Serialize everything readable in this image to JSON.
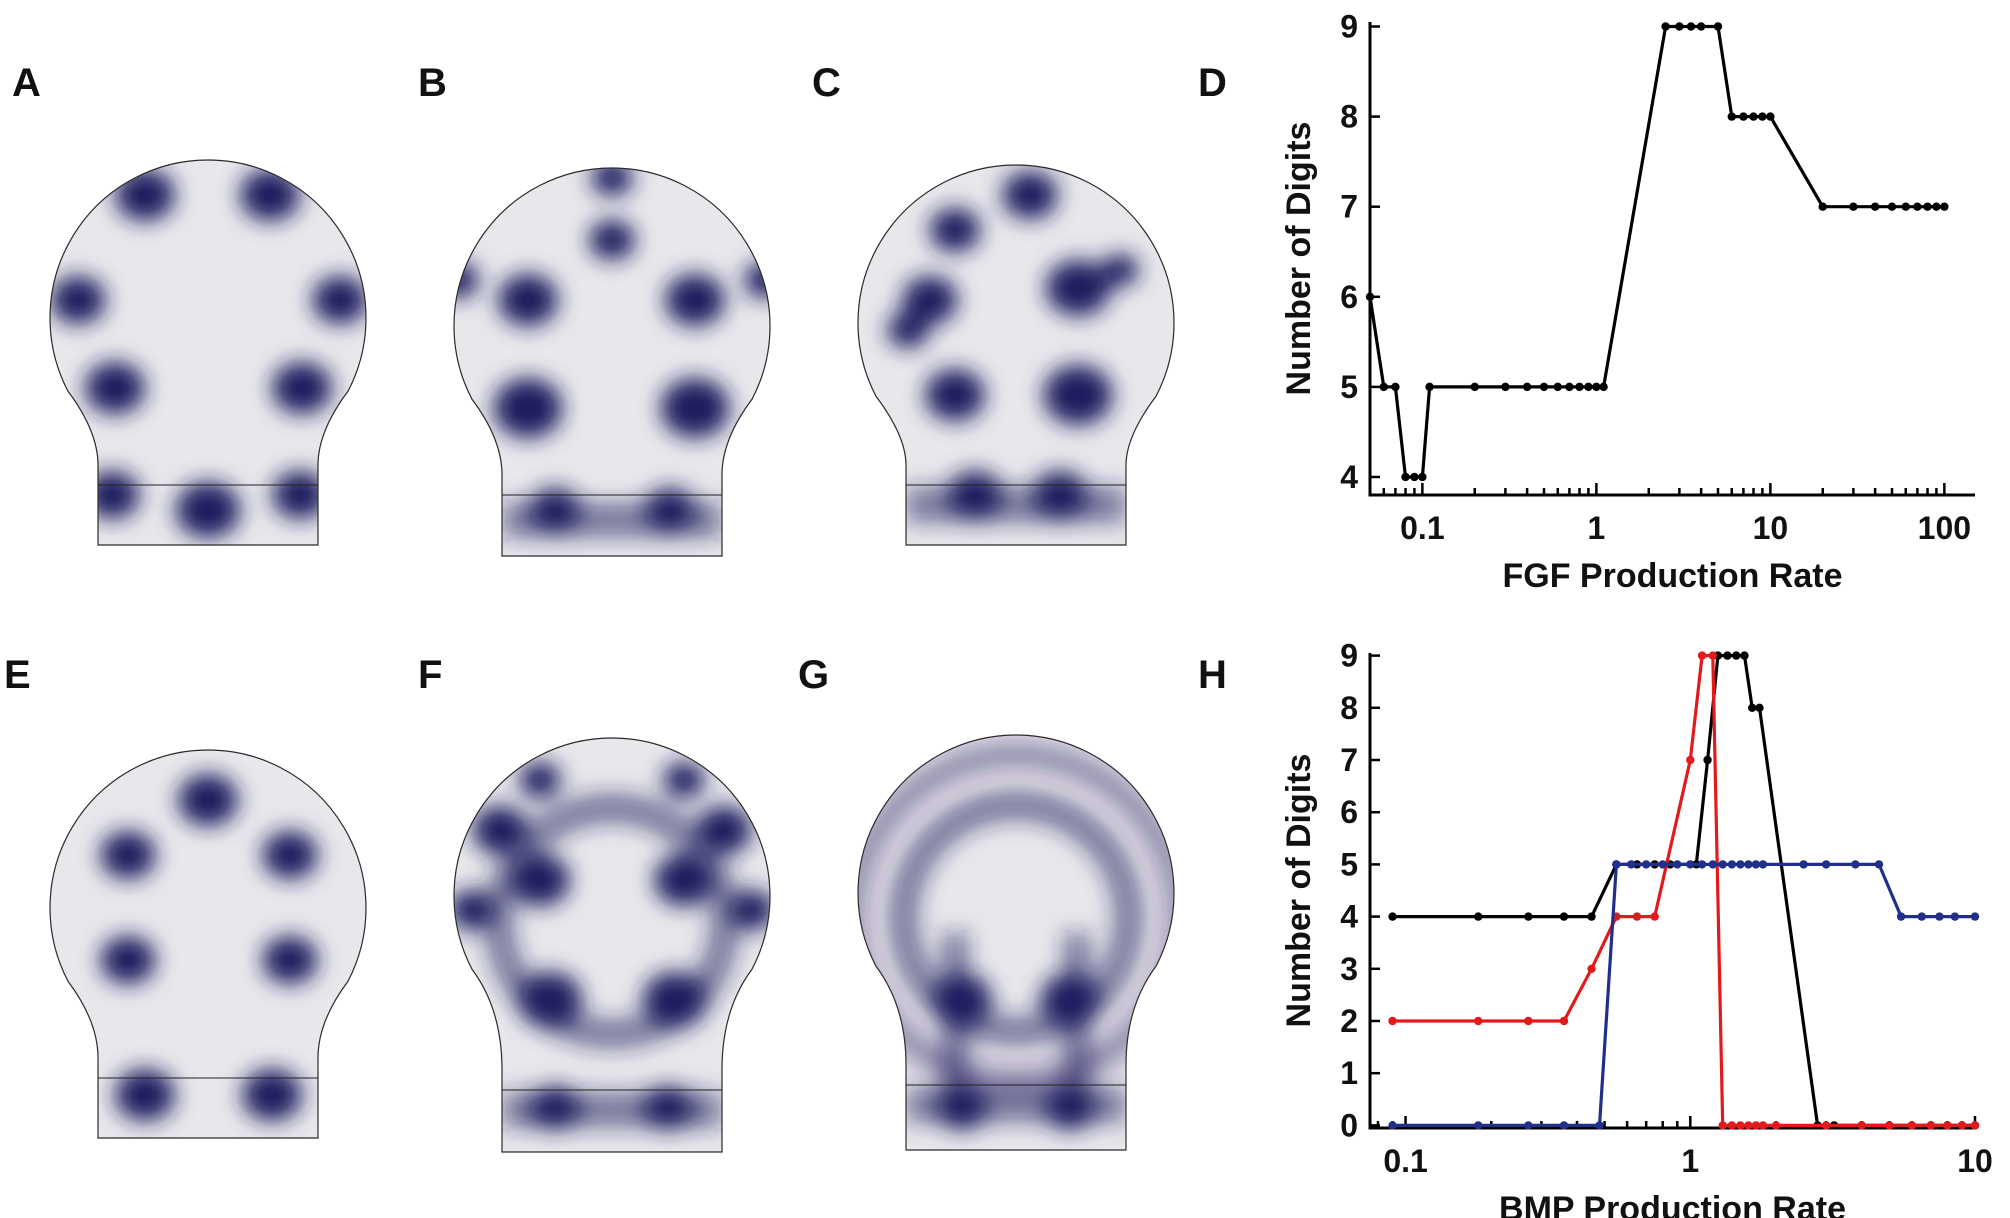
{
  "panel_labels": {
    "A": "A",
    "B": "B",
    "C": "C",
    "D": "D",
    "E": "E",
    "F": "F",
    "G": "G",
    "H": "H"
  },
  "colors": {
    "shape_background": "#e8e8ec",
    "spot": "#1f1d5e",
    "black_series": "#000000",
    "red_series": "#e31a1c",
    "blue_series": "#1f2f8a"
  },
  "chart_data": [
    {
      "panel": "D",
      "type": "line",
      "xlabel": "FGF Production Rate",
      "ylabel": "Number of Digits",
      "x_scale": "log",
      "xlim": [
        0.05,
        150
      ],
      "ylim": [
        3.8,
        9.05
      ],
      "xticks": [
        0.1,
        1,
        10,
        100
      ],
      "xtick_labels": [
        "0.1",
        "1",
        "10",
        "100"
      ],
      "yticks": [
        4,
        5,
        6,
        7,
        8,
        9
      ],
      "ytick_labels": [
        "4",
        "5",
        "6",
        "7",
        "8",
        "9"
      ],
      "grid": false,
      "series": [
        {
          "color": "#000000",
          "x": [
            0.05,
            0.06,
            0.07,
            0.08,
            0.09,
            0.1,
            0.11,
            0.2,
            0.3,
            0.4,
            0.5,
            0.6,
            0.7,
            0.8,
            0.9,
            1.0,
            1.1,
            2.5,
            3,
            3.5,
            4,
            5,
            6,
            7,
            8,
            9,
            10,
            20,
            30,
            40,
            50,
            60,
            70,
            80,
            90,
            100
          ],
          "y": [
            6,
            5,
            5,
            4,
            4,
            4,
            5,
            5,
            5,
            5,
            5,
            5,
            5,
            5,
            5,
            5,
            5,
            9,
            9,
            9,
            9,
            9,
            8,
            8,
            8,
            8,
            8,
            7,
            7,
            7,
            7,
            7,
            7,
            7,
            7,
            7
          ]
        }
      ]
    },
    {
      "panel": "H",
      "type": "line",
      "xlabel": "BMP Production Rate",
      "ylabel": "Number of Digits",
      "x_scale": "log",
      "xlim": [
        0.075,
        10
      ],
      "ylim": [
        -0.05,
        9.05
      ],
      "xticks": [
        0.1,
        1,
        10
      ],
      "xtick_labels": [
        "0.1",
        "1",
        "10"
      ],
      "yticks": [
        0,
        1,
        2,
        3,
        4,
        5,
        6,
        7,
        8,
        9
      ],
      "ytick_labels": [
        "0",
        "1",
        "2",
        "3",
        "4",
        "5",
        "6",
        "7",
        "8",
        "9"
      ],
      "grid": false,
      "series": [
        {
          "color": "#000000",
          "x": [
            0.09,
            0.18,
            0.27,
            0.36,
            0.45,
            0.55,
            0.65,
            0.75,
            0.85,
            1.05,
            1.15,
            1.25,
            1.35,
            1.45,
            1.55,
            1.65,
            1.75,
            2.8,
            3.2,
            4,
            5,
            6,
            7,
            8,
            9,
            10
          ],
          "y": [
            4,
            4,
            4,
            4,
            4,
            5,
            5,
            5,
            5,
            5,
            7,
            9,
            9,
            9,
            9,
            8,
            8,
            0,
            0,
            0,
            0,
            0,
            0,
            0,
            0,
            0
          ]
        },
        {
          "color": "#e31a1c",
          "x": [
            0.09,
            0.18,
            0.27,
            0.36,
            0.45,
            0.55,
            0.65,
            0.75,
            1.0,
            1.1,
            1.2,
            1.3,
            1.4,
            1.5,
            1.6,
            1.7,
            1.8,
            2.0,
            3,
            4,
            5,
            6,
            7,
            8,
            9,
            10
          ],
          "y": [
            2,
            2,
            2,
            2,
            3,
            4,
            4,
            4,
            7,
            9,
            9,
            0,
            0,
            0,
            0,
            0,
            0,
            0,
            0,
            0,
            0,
            0,
            0,
            0,
            0,
            0
          ]
        },
        {
          "color": "#1f2f8a",
          "x": [
            0.09,
            0.18,
            0.27,
            0.36,
            0.48,
            0.55,
            0.62,
            0.7,
            0.8,
            0.9,
            1.0,
            1.1,
            1.2,
            1.3,
            1.4,
            1.5,
            1.6,
            1.7,
            1.8,
            2.5,
            3.0,
            3.8,
            4.6,
            5.5,
            6.5,
            7.5,
            8.5,
            10
          ],
          "y": [
            0,
            0,
            0,
            0,
            0,
            5,
            5,
            5,
            5,
            5,
            5,
            5,
            5,
            5,
            5,
            5,
            5,
            5,
            5,
            5,
            5,
            5,
            5,
            4,
            4,
            4,
            4,
            4
          ]
        }
      ]
    }
  ]
}
